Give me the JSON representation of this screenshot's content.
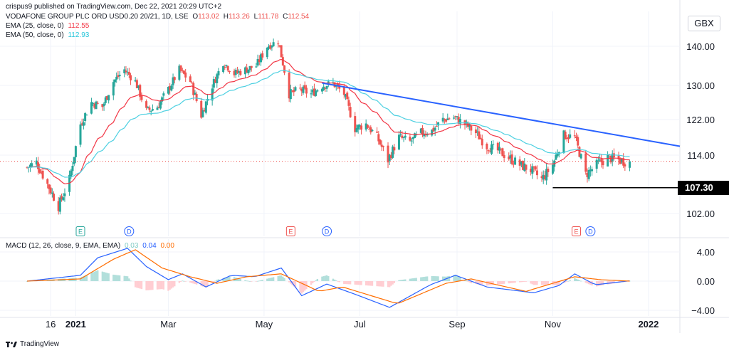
{
  "header": {
    "credit": "crispus9 published on TradingView.com, Dec 22, 2021 20:29 UTC+2",
    "symbol": "VODAFONE GROUP PLC ORD USD0.20 20/21, 1D, LSE",
    "ohlc": {
      "o_label": "O",
      "o": "113.02",
      "h_label": "H",
      "h": "113.26",
      "l_label": "L",
      "l": "111.78",
      "c_label": "C",
      "c": "112.54"
    },
    "ema25_label": "EMA (25, close, 0)",
    "ema25_value": "112.55",
    "ema50_label": "EMA (50, close, 0)",
    "ema50_value": "112.93",
    "macd_label": "MACD (12, 26, close, 9, EMA, EMA)",
    "macd_hist": "0.03",
    "macd_line": "0.04",
    "macd_signal": "0.00"
  },
  "currency": "GBX",
  "support_label": "107.30",
  "footer": {
    "brand": "TradingView"
  },
  "colors": {
    "up": "#26a69a",
    "down": "#ef5350",
    "ema25": "#f23645",
    "ema50": "#4dd0e1",
    "trendline": "#2962ff",
    "macd": "#2962ff",
    "signal": "#ff6d00",
    "hist_up": "#b2dfdb",
    "hist_down": "#ffcdd2"
  },
  "chart_data": [
    {
      "type": "candlestick",
      "title": "VODAFONE GROUP PLC ORD USD0.20 20/21, 1D, LSE",
      "x_tick_labels": [
        "16",
        "2021",
        "Mar",
        "May",
        "Jul",
        "Sep",
        "Nov",
        "2022"
      ],
      "y_tick_labels": [
        "140.00",
        "130.00",
        "122.00",
        "114.00",
        "107.30",
        "102.00"
      ],
      "ylim": [
        99,
        147
      ],
      "approx_close_path": [
        {
          "date": "2020-12-01",
          "close": 111.5
        },
        {
          "date": "2020-12-07",
          "close": 112.5
        },
        {
          "date": "2020-12-14",
          "close": 108.0
        },
        {
          "date": "2020-12-21",
          "close": 103.5
        },
        {
          "date": "2020-12-28",
          "close": 109.0
        },
        {
          "date": "2021-01-04",
          "close": 121.0
        },
        {
          "date": "2021-01-11",
          "close": 126.0
        },
        {
          "date": "2021-01-18",
          "close": 125.0
        },
        {
          "date": "2021-01-25",
          "close": 131.0
        },
        {
          "date": "2021-02-01",
          "close": 134.0
        },
        {
          "date": "2021-02-08",
          "close": 131.0
        },
        {
          "date": "2021-02-15",
          "close": 124.0
        },
        {
          "date": "2021-02-22",
          "close": 125.0
        },
        {
          "date": "2021-03-01",
          "close": 129.0
        },
        {
          "date": "2021-03-08",
          "close": 134.0
        },
        {
          "date": "2021-03-15",
          "close": 131.0
        },
        {
          "date": "2021-03-22",
          "close": 123.0
        },
        {
          "date": "2021-03-29",
          "close": 130.0
        },
        {
          "date": "2021-04-05",
          "close": 136.0
        },
        {
          "date": "2021-04-12",
          "close": 133.0
        },
        {
          "date": "2021-04-19",
          "close": 134.0
        },
        {
          "date": "2021-04-26",
          "close": 135.0
        },
        {
          "date": "2021-05-03",
          "close": 140.0
        },
        {
          "date": "2021-05-10",
          "close": 141.5
        },
        {
          "date": "2021-05-17",
          "close": 128.0
        },
        {
          "date": "2021-05-24",
          "close": 129.0
        },
        {
          "date": "2021-05-31",
          "close": 128.0
        },
        {
          "date": "2021-06-07",
          "close": 130.0
        },
        {
          "date": "2021-06-14",
          "close": 130.5
        },
        {
          "date": "2021-06-21",
          "close": 128.0
        },
        {
          "date": "2021-06-28",
          "close": 120.0
        },
        {
          "date": "2021-07-05",
          "close": 121.0
        },
        {
          "date": "2021-07-12",
          "close": 118.0
        },
        {
          "date": "2021-07-19",
          "close": 113.0
        },
        {
          "date": "2021-07-26",
          "close": 118.0
        },
        {
          "date": "2021-08-02",
          "close": 117.0
        },
        {
          "date": "2021-08-09",
          "close": 119.0
        },
        {
          "date": "2021-08-16",
          "close": 119.5
        },
        {
          "date": "2021-08-23",
          "close": 122.0
        },
        {
          "date": "2021-08-30",
          "close": 122.5
        },
        {
          "date": "2021-09-06",
          "close": 121.0
        },
        {
          "date": "2021-09-13",
          "close": 119.0
        },
        {
          "date": "2021-09-20",
          "close": 116.0
        },
        {
          "date": "2021-09-27",
          "close": 115.0
        },
        {
          "date": "2021-10-04",
          "close": 113.5
        },
        {
          "date": "2021-10-11",
          "close": 112.0
        },
        {
          "date": "2021-10-18",
          "close": 111.0
        },
        {
          "date": "2021-10-25",
          "close": 109.0
        },
        {
          "date": "2021-11-01",
          "close": 112.0
        },
        {
          "date": "2021-11-08",
          "close": 118.5
        },
        {
          "date": "2021-11-15",
          "close": 118.0
        },
        {
          "date": "2021-11-22",
          "close": 110.0
        },
        {
          "date": "2021-11-29",
          "close": 112.0
        },
        {
          "date": "2021-12-06",
          "close": 113.5
        },
        {
          "date": "2021-12-13",
          "close": 113.0
        },
        {
          "date": "2021-12-20",
          "close": 112.54
        }
      ],
      "series": [
        {
          "name": "EMA (25, close, 0)",
          "last": 112.55
        },
        {
          "name": "EMA (50, close, 0)",
          "last": 112.93
        }
      ],
      "trendline": [
        {
          "date": "2021-06-07",
          "value": 130.6
        },
        {
          "date": "2022-01-21",
          "value": 116.0
        }
      ],
      "support": {
        "value": 107.3,
        "from": "2021-11-01",
        "to": "2022-01-21"
      },
      "events": [
        {
          "label": "E",
          "date": "2021-01-04",
          "color": "#26a69a"
        },
        {
          "label": "D",
          "date": "2021-02-04",
          "color": "#2962ff"
        },
        {
          "label": "E",
          "date": "2021-05-18",
          "color": "#ef5350"
        },
        {
          "label": "D",
          "date": "2021-06-10",
          "color": "#2962ff"
        },
        {
          "label": "E",
          "date": "2021-11-16",
          "color": "#ef5350"
        },
        {
          "label": "D",
          "date": "2021-11-25",
          "color": "#2962ff"
        }
      ],
      "grid": true
    },
    {
      "type": "line",
      "title": "MACD (12, 26, close, 9, EMA, EMA)",
      "y_tick_labels": [
        "4.00",
        "0.00",
        "−4.00"
      ],
      "ylim": [
        -5,
        5
      ],
      "macd_path": [
        {
          "date": "2020-12-01",
          "value": 0.0
        },
        {
          "date": "2021-01-04",
          "value": 0.8
        },
        {
          "date": "2021-01-15",
          "value": 3.2
        },
        {
          "date": "2021-02-03",
          "value": 4.5
        },
        {
          "date": "2021-02-15",
          "value": 2.0
        },
        {
          "date": "2021-03-01",
          "value": 0.2
        },
        {
          "date": "2021-03-10",
          "value": 1.0
        },
        {
          "date": "2021-03-25",
          "value": -0.8
        },
        {
          "date": "2021-04-10",
          "value": 0.8
        },
        {
          "date": "2021-04-25",
          "value": 0.6
        },
        {
          "date": "2021-05-12",
          "value": 1.8
        },
        {
          "date": "2021-05-25",
          "value": -2.0
        },
        {
          "date": "2021-06-10",
          "value": -0.4
        },
        {
          "date": "2021-06-28",
          "value": -1.8
        },
        {
          "date": "2021-07-20",
          "value": -3.6
        },
        {
          "date": "2021-08-15",
          "value": -0.5
        },
        {
          "date": "2021-08-31",
          "value": 0.8
        },
        {
          "date": "2021-09-20",
          "value": -0.8
        },
        {
          "date": "2021-10-20",
          "value": -1.6
        },
        {
          "date": "2021-11-05",
          "value": -0.6
        },
        {
          "date": "2021-11-15",
          "value": 1.0
        },
        {
          "date": "2021-11-28",
          "value": -0.5
        },
        {
          "date": "2021-12-20",
          "value": 0.04
        }
      ],
      "signal_path": [
        {
          "date": "2020-12-01",
          "value": 0.0
        },
        {
          "date": "2021-01-04",
          "value": 0.3
        },
        {
          "date": "2021-01-25",
          "value": 3.0
        },
        {
          "date": "2021-02-08",
          "value": 4.3
        },
        {
          "date": "2021-02-25",
          "value": 1.8
        },
        {
          "date": "2021-03-15",
          "value": 0.6
        },
        {
          "date": "2021-04-01",
          "value": -0.3
        },
        {
          "date": "2021-04-20",
          "value": 0.6
        },
        {
          "date": "2021-05-12",
          "value": 1.0
        },
        {
          "date": "2021-06-05",
          "value": -1.4
        },
        {
          "date": "2021-06-20",
          "value": -0.8
        },
        {
          "date": "2021-07-25",
          "value": -3.1
        },
        {
          "date": "2021-08-25",
          "value": -0.3
        },
        {
          "date": "2021-09-10",
          "value": 0.3
        },
        {
          "date": "2021-10-15",
          "value": -1.4
        },
        {
          "date": "2021-11-15",
          "value": 0.6
        },
        {
          "date": "2021-12-01",
          "value": 0.2
        },
        {
          "date": "2021-12-20",
          "value": 0.0
        }
      ],
      "histogram": "MACD minus signal, green above zero, red below",
      "grid": true
    }
  ]
}
